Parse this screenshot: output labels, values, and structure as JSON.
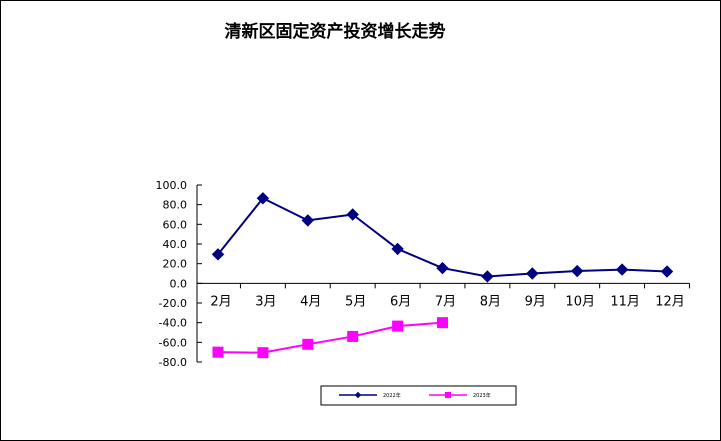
{
  "chart_data": {
    "type": "line",
    "title": "清新区固定资产投资增长走势",
    "categories": [
      "2月",
      "3月",
      "4月",
      "5月",
      "6月",
      "7月",
      "8月",
      "9月",
      "10月",
      "11月",
      "12月"
    ],
    "y_ticks": [
      "100.0",
      "80.0",
      "60.0",
      "40.0",
      "20.0",
      "0.0",
      "-20.0",
      "-40.0",
      "-60.0",
      "-80.0"
    ],
    "ylim": [
      -80,
      100
    ],
    "grid": false,
    "legend_position": "bottom",
    "series": [
      {
        "name": "2022年",
        "color": "#000080",
        "marker": "diamond",
        "values": [
          29.5,
          86.5,
          64.0,
          70.0,
          35.0,
          15.5,
          7.0,
          10.0,
          12.5,
          14.0,
          12.0
        ]
      },
      {
        "name": "2023年",
        "color": "#ff00ff",
        "marker": "square",
        "values": [
          -70.0,
          -70.5,
          -62.0,
          -54.0,
          -43.5,
          -40.0,
          null,
          null,
          null,
          null,
          null
        ]
      }
    ]
  }
}
